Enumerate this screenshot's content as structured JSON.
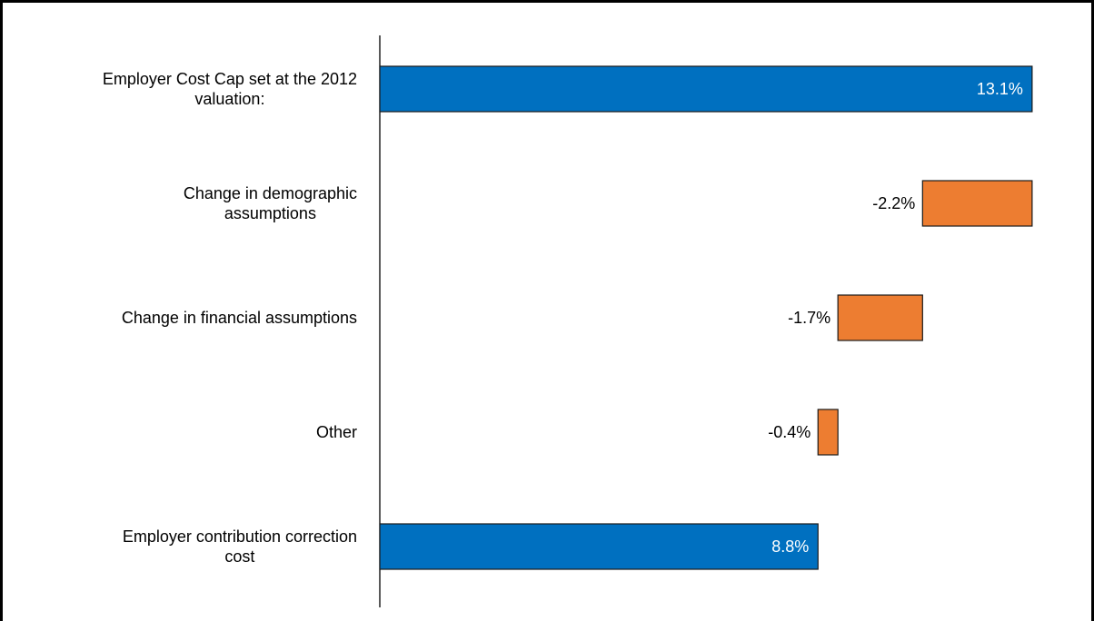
{
  "chart_data": {
    "type": "bar",
    "orientation": "horizontal",
    "variant": "waterfall",
    "categories": [
      "Employer Cost Cap set at the 2012 valuation:",
      "Change in demographic assumptions",
      "Change in financial assumptions",
      "Other",
      "Employer contribution correction cost"
    ],
    "values": [
      13.1,
      -2.2,
      -1.7,
      -0.4,
      8.8
    ],
    "kinds": [
      "total",
      "change",
      "change",
      "change",
      "total"
    ],
    "data_labels": [
      "13.1%",
      "-2.2%",
      "-1.7%",
      "-0.4%",
      "8.8%"
    ],
    "title": "",
    "xlabel": "",
    "ylabel": "",
    "xlim": [
      0,
      13.1
    ],
    "grid": false,
    "legend": "none",
    "colors": {
      "total": "#0070c0",
      "change": "#ed7d31",
      "total_label": "#ffffff",
      "change_label": "#000000",
      "axis": "#000000"
    }
  }
}
